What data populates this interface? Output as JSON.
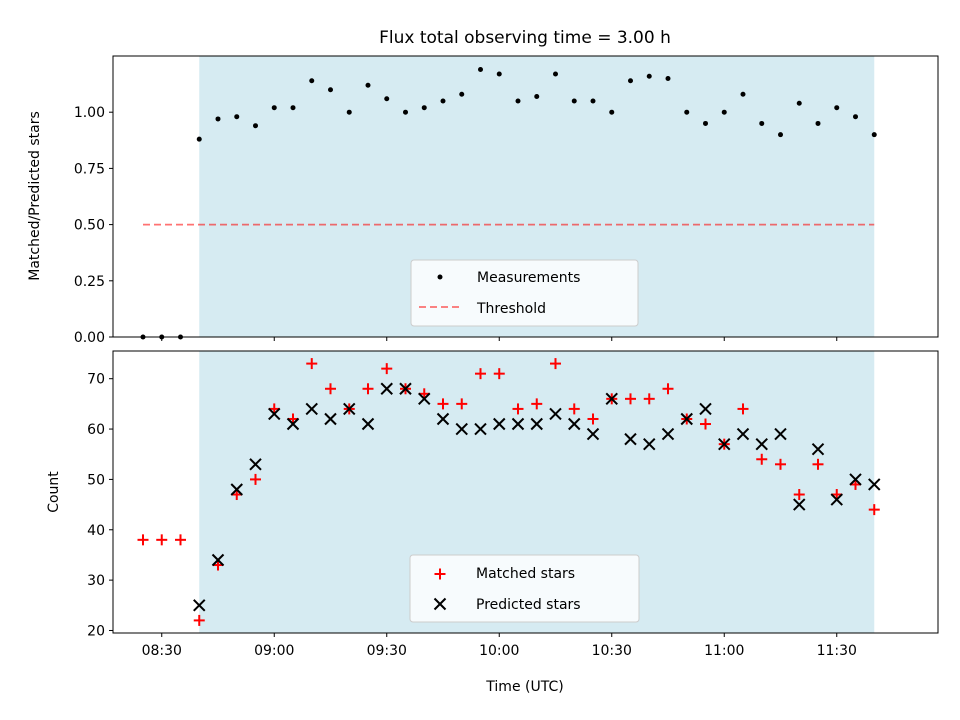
{
  "colors": {
    "background": "#ffffff",
    "shade": "#add8e6",
    "threshold": "#ff0000",
    "matched": "#ff0000",
    "predicted": "#000000",
    "measurement": "#000000"
  },
  "chart_data": [
    {
      "type": "scatter",
      "title": "Flux total observing time = 3.00 h",
      "xlabel": "",
      "ylabel": "Matched/Predicted stars",
      "xlim": [
        "08:17",
        "11:57"
      ],
      "ylim": [
        0,
        1.25
      ],
      "yticks": [
        0.0,
        0.25,
        0.5,
        0.75,
        1.0
      ],
      "ytick_labels": [
        "0.00",
        "0.25",
        "0.50",
        "0.75",
        "1.00"
      ],
      "shaded_span": [
        "08:40",
        "11:40"
      ],
      "threshold": {
        "value": 0.5,
        "x_start": "08:25",
        "x_end": "11:40"
      },
      "legend": {
        "position": "lower center",
        "entries": [
          "Measurements",
          "Threshold"
        ]
      },
      "series": [
        {
          "name": "Measurements",
          "times": [
            "08:25",
            "08:30",
            "08:35",
            "08:40",
            "08:45",
            "08:50",
            "08:55",
            "09:00",
            "09:05",
            "09:10",
            "09:15",
            "09:20",
            "09:25",
            "09:30",
            "09:35",
            "09:40",
            "09:45",
            "09:50",
            "09:55",
            "10:00",
            "10:05",
            "10:10",
            "10:15",
            "10:20",
            "10:25",
            "10:30",
            "10:35",
            "10:40",
            "10:45",
            "10:50",
            "10:55",
            "11:00",
            "11:05",
            "11:10",
            "11:15",
            "11:20",
            "11:25",
            "11:30",
            "11:35",
            "11:40"
          ],
          "values": [
            0.0,
            0.0,
            0.0,
            0.88,
            0.97,
            0.98,
            0.94,
            1.02,
            1.02,
            1.14,
            1.1,
            1.0,
            1.12,
            1.06,
            1.0,
            1.02,
            1.05,
            1.08,
            1.19,
            1.17,
            1.05,
            1.07,
            1.17,
            1.05,
            1.05,
            1.0,
            1.14,
            1.16,
            1.15,
            1.0,
            0.95,
            1.0,
            1.08,
            0.95,
            0.9,
            1.04,
            0.95,
            1.02,
            0.98,
            0.9
          ]
        }
      ]
    },
    {
      "type": "scatter",
      "title": "",
      "xlabel": "Time (UTC)",
      "ylabel": "Count",
      "xlim": [
        "08:17",
        "11:57"
      ],
      "ylim": [
        19.5,
        75.5
      ],
      "yticks": [
        20,
        30,
        40,
        50,
        60,
        70
      ],
      "ytick_labels": [
        "20",
        "30",
        "40",
        "50",
        "60",
        "70"
      ],
      "xticks": [
        "08:30",
        "09:00",
        "09:30",
        "10:00",
        "10:30",
        "11:00",
        "11:30"
      ],
      "shaded_span": [
        "08:40",
        "11:40"
      ],
      "legend": {
        "position": "lower center",
        "entries": [
          "Matched stars",
          "Predicted stars"
        ]
      },
      "series": [
        {
          "name": "Matched stars",
          "marker": "+",
          "times": [
            "08:25",
            "08:30",
            "08:35",
            "08:40",
            "08:45",
            "08:50",
            "08:55",
            "09:00",
            "09:05",
            "09:10",
            "09:15",
            "09:20",
            "09:25",
            "09:30",
            "09:35",
            "09:40",
            "09:45",
            "09:50",
            "09:55",
            "10:00",
            "10:05",
            "10:10",
            "10:15",
            "10:20",
            "10:25",
            "10:30",
            "10:35",
            "10:40",
            "10:45",
            "10:50",
            "10:55",
            "11:00",
            "11:05",
            "11:10",
            "11:15",
            "11:20",
            "11:25",
            "11:30",
            "11:35",
            "11:40"
          ],
          "values": [
            38,
            38,
            38,
            22,
            33,
            47,
            50,
            64,
            62,
            73,
            68,
            64,
            68,
            72,
            68,
            67,
            65,
            65,
            71,
            71,
            64,
            65,
            73,
            64,
            62,
            66,
            66,
            66,
            68,
            62,
            61,
            57,
            64,
            54,
            53,
            47,
            53,
            47,
            49,
            44
          ]
        },
        {
          "name": "Predicted stars",
          "marker": "x",
          "times": [
            "08:40",
            "08:45",
            "08:50",
            "08:55",
            "09:00",
            "09:05",
            "09:10",
            "09:15",
            "09:20",
            "09:25",
            "09:30",
            "09:35",
            "09:40",
            "09:45",
            "09:50",
            "09:55",
            "10:00",
            "10:05",
            "10:10",
            "10:15",
            "10:20",
            "10:25",
            "10:30",
            "10:35",
            "10:40",
            "10:45",
            "10:50",
            "10:55",
            "11:00",
            "11:05",
            "11:10",
            "11:15",
            "11:20",
            "11:25",
            "11:30",
            "11:35",
            "11:40"
          ],
          "values": [
            25,
            34,
            48,
            53,
            63,
            61,
            64,
            62,
            64,
            61,
            68,
            68,
            66,
            62,
            60,
            60,
            61,
            61,
            61,
            63,
            61,
            59,
            66,
            58,
            57,
            59,
            62,
            64,
            57,
            59,
            57,
            59,
            45,
            56,
            46,
            50,
            49
          ]
        }
      ]
    }
  ]
}
